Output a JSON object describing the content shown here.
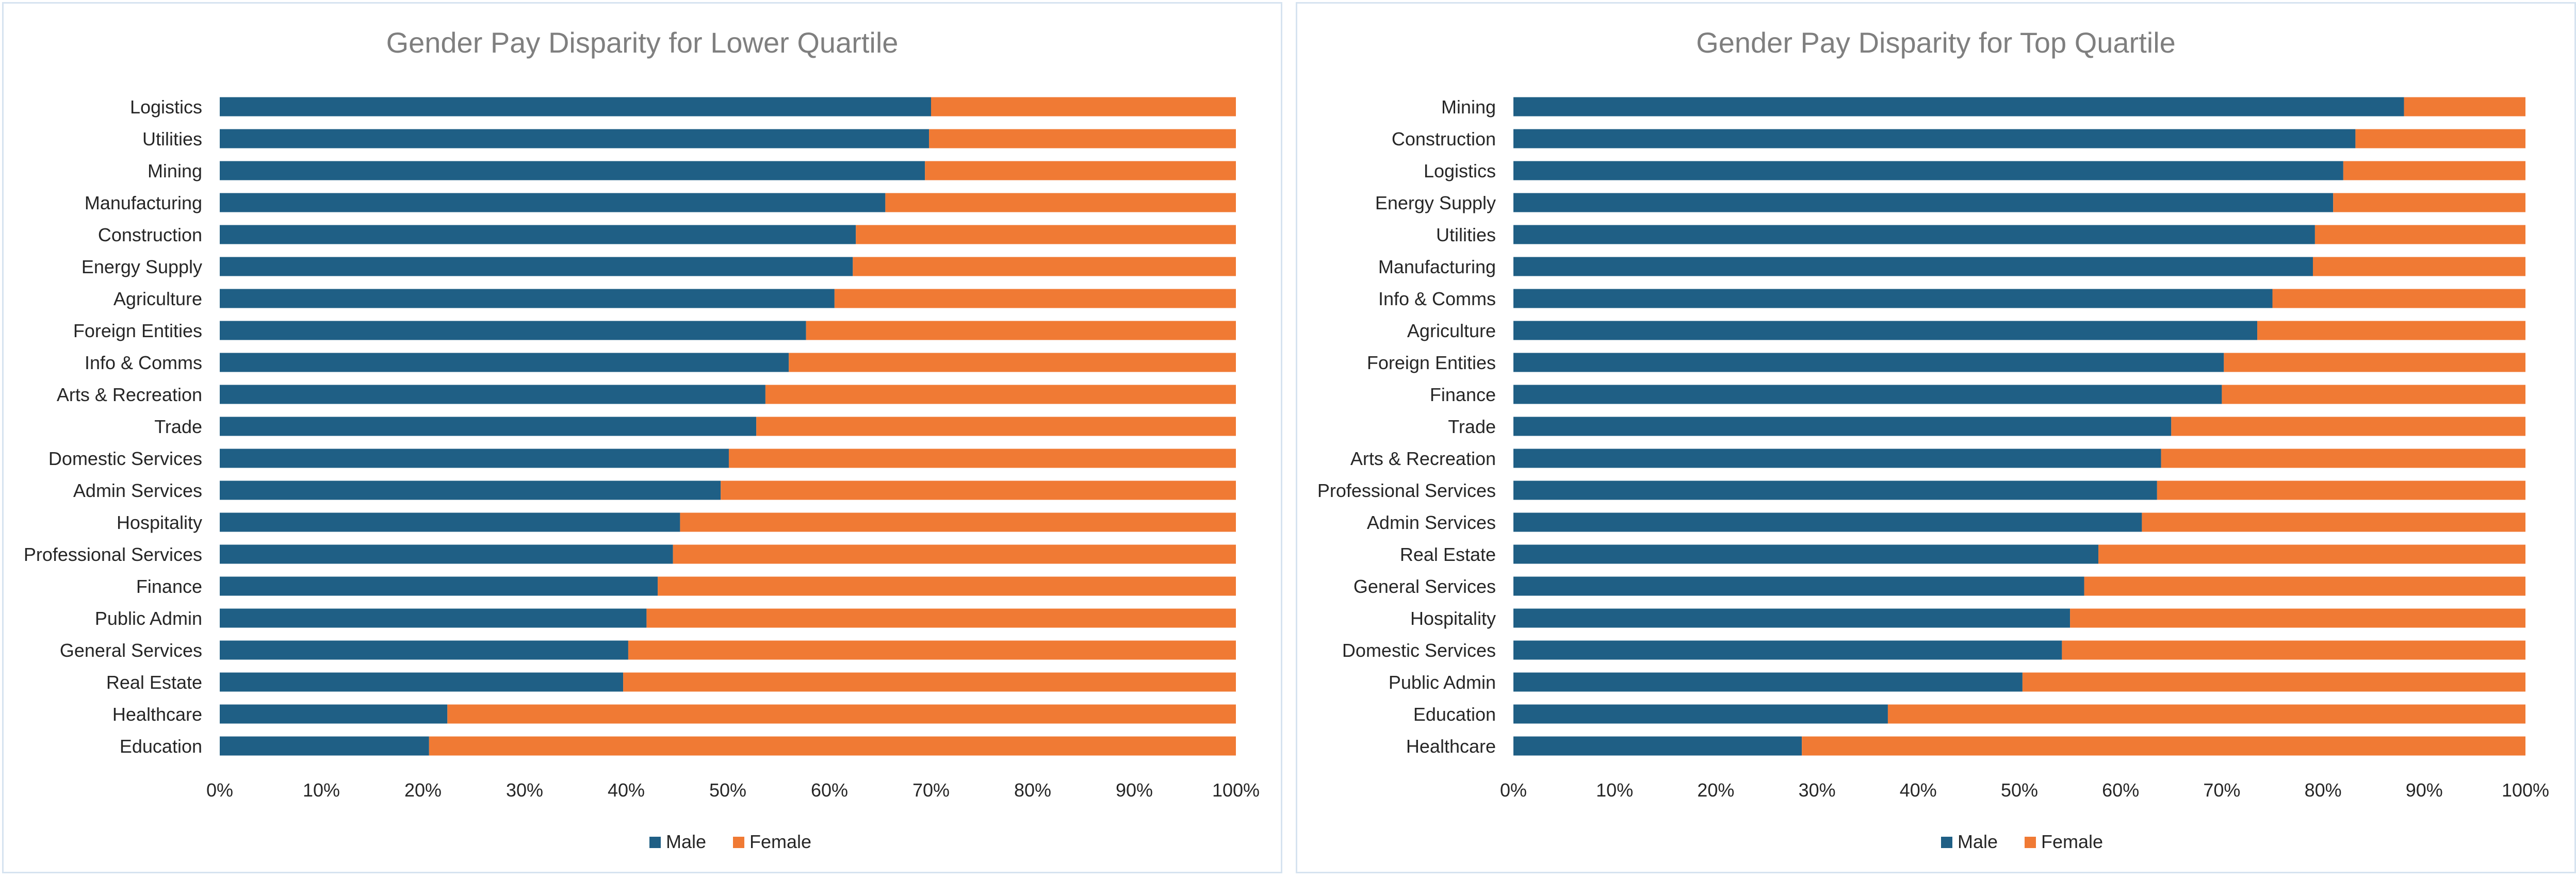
{
  "colors": {
    "male": "#1f5f85",
    "female": "#f07a34"
  },
  "legend": {
    "male": "Male",
    "female": "Female"
  },
  "chart_data": [
    {
      "type": "bar",
      "orientation": "horizontal",
      "stacking": "percent",
      "title": "Gender Pay Disparity for Lower Quartile",
      "xlabel": "",
      "ylabel": "",
      "xlim": [
        0,
        100
      ],
      "x_ticks": [
        "0%",
        "10%",
        "20%",
        "30%",
        "40%",
        "50%",
        "60%",
        "70%",
        "80%",
        "90%",
        "100%"
      ],
      "legend_position": "bottom",
      "categories": [
        "Logistics",
        "Utilities",
        "Mining",
        "Manufacturing",
        "Construction",
        "Energy Supply",
        "Agriculture",
        "Foreign Entities",
        "Info & Comms",
        "Arts & Recreation",
        "Trade",
        "Domestic Services",
        "Admin Services",
        "Hospitality",
        "Professional Services",
        "Finance",
        "Public Admin",
        "General Services",
        "Real Estate",
        "Healthcare",
        "Education"
      ],
      "series": [
        {
          "name": "Male",
          "values": [
            70,
            69.8,
            69.4,
            65.5,
            62.6,
            62.3,
            60.5,
            57.7,
            56,
            53.7,
            52.8,
            50.1,
            49.3,
            45.3,
            44.6,
            43.1,
            42,
            40.2,
            39.7,
            22.4,
            20.6
          ]
        },
        {
          "name": "Female",
          "values": [
            30,
            30.2,
            30.6,
            34.5,
            37.4,
            37.7,
            39.5,
            42.3,
            44,
            46.3,
            47.2,
            49.9,
            50.7,
            54.7,
            55.4,
            56.9,
            58,
            59.8,
            60.3,
            77.6,
            79.4
          ]
        }
      ]
    },
    {
      "type": "bar",
      "orientation": "horizontal",
      "stacking": "percent",
      "title": "Gender Pay Disparity for Top Quartile",
      "xlabel": "",
      "ylabel": "",
      "xlim": [
        0,
        100
      ],
      "x_ticks": [
        "0%",
        "10%",
        "20%",
        "30%",
        "40%",
        "50%",
        "60%",
        "70%",
        "80%",
        "90%",
        "100%"
      ],
      "legend_position": "bottom",
      "categories": [
        "Mining",
        "Construction",
        "Logistics",
        "Energy Supply",
        "Utilities",
        "Manufacturing",
        "Info & Comms",
        "Agriculture",
        "Foreign Entities",
        "Finance",
        "Trade",
        "Arts & Recreation",
        "Professional Services",
        "Admin Services",
        "Real Estate",
        "General Services",
        "Hospitality",
        "Domestic Services",
        "Public Admin",
        "Education",
        "Healthcare"
      ],
      "series": [
        {
          "name": "Male",
          "values": [
            88,
            83.2,
            82,
            81,
            79.2,
            79,
            75,
            73.5,
            70.2,
            70,
            65,
            64,
            63.6,
            62.1,
            57.8,
            56.4,
            55,
            54.2,
            50.3,
            37,
            28.5
          ]
        },
        {
          "name": "Female",
          "values": [
            12,
            16.8,
            18,
            19,
            20.8,
            21,
            25,
            26.5,
            29.8,
            30,
            35,
            36,
            36.4,
            37.9,
            42.2,
            43.6,
            45,
            45.8,
            49.7,
            63,
            71.5
          ]
        }
      ]
    }
  ]
}
